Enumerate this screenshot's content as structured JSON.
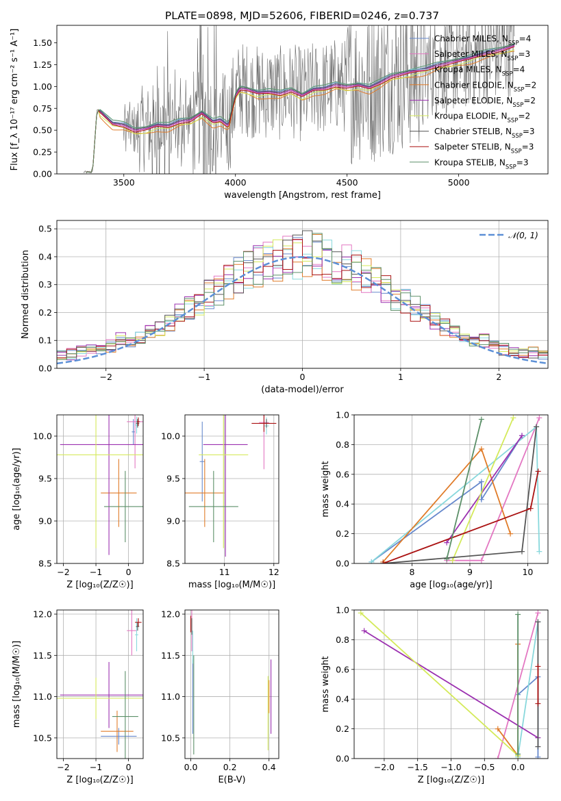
{
  "figure": {
    "title": "PLATE=0898, MJD=52606, FIBERID=0246, z=0.737"
  },
  "models": [
    {
      "name": "Chabrier MILES",
      "nssp": "4",
      "color": "#6688cc"
    },
    {
      "name": "Salpeter MILES",
      "nssp": "3",
      "color": "#e377c2"
    },
    {
      "name": "Kroupa MILES",
      "nssp": "4",
      "color": "#88d8dc"
    },
    {
      "name": "Chabrier ELODIE",
      "nssp": "2",
      "color": "#e07b28"
    },
    {
      "name": "Salpeter ELODIE",
      "nssp": "2",
      "color": "#9b30b0"
    },
    {
      "name": "Kroupa ELODIE",
      "nssp": "2",
      "color": "#d4ea5a"
    },
    {
      "name": "Chabrier STELIB",
      "nssp": "3",
      "color": "#555555"
    },
    {
      "name": "Salpeter STELIB",
      "nssp": "3",
      "color": "#aa1111"
    },
    {
      "name": "Kroupa STELIB",
      "nssp": "3",
      "color": "#5b8f68"
    }
  ],
  "chart_data": [
    {
      "id": "spectrum",
      "type": "line",
      "xlabel": "wavelength [Angstrom, rest frame]",
      "ylabel": "Flux [f_λ 10⁻¹⁷ erg cm⁻² s⁻¹ A⁻¹]",
      "xlim": [
        3200,
        5400
      ],
      "ylim": [
        0,
        1.7
      ],
      "xticks": [
        3500,
        4000,
        4500,
        5000
      ],
      "yticks": [
        0.0,
        0.25,
        0.5,
        0.75,
        1.0,
        1.25,
        1.5
      ],
      "legend": "upper right",
      "grid": false,
      "data_color": "#666666",
      "model_continuum": {
        "x": [
          3300,
          3360,
          3380,
          3400,
          3450,
          3500,
          3550,
          3600,
          3650,
          3700,
          3750,
          3800,
          3850,
          3900,
          3933,
          3968,
          4000,
          4020,
          4050,
          4100,
          4150,
          4200,
          4250,
          4300,
          4350,
          4400,
          4450,
          4500,
          4550,
          4600,
          4650,
          4700,
          4750,
          4800,
          4850,
          4900,
          4950,
          5000,
          5050,
          5100,
          5150,
          5200,
          5250
        ],
        "y": [
          0.02,
          0.02,
          0.74,
          0.7,
          0.58,
          0.56,
          0.5,
          0.52,
          0.56,
          0.55,
          0.6,
          0.62,
          0.7,
          0.6,
          0.62,
          0.55,
          0.9,
          0.98,
          0.97,
          0.93,
          0.94,
          0.92,
          0.96,
          0.9,
          0.97,
          0.98,
          1.02,
          1.0,
          1.02,
          0.99,
          1.05,
          1.12,
          1.15,
          1.18,
          1.2,
          1.24,
          1.27,
          1.3,
          1.33,
          1.37,
          1.4,
          1.43,
          1.47
        ]
      },
      "model_offsets": [
        0.02,
        -0.01,
        0.03,
        -0.06,
        0.0,
        -0.04,
        0.01,
        -0.02,
        0.03
      ]
    },
    {
      "id": "residual_hist",
      "type": "line",
      "xlabel": "(data-model)/error",
      "ylabel": "Normed distribution",
      "xlim": [
        -2.5,
        2.5
      ],
      "ylim": [
        0,
        0.53
      ],
      "xticks": [
        -2,
        -1,
        0,
        1,
        2
      ],
      "yticks": [
        0.0,
        0.1,
        0.2,
        0.3,
        0.4,
        0.5
      ],
      "grid": true,
      "legend": "upper right",
      "gauss_label": "𝒩(0, 1)",
      "gauss_color": "#5b8fd6",
      "bin_width": 0.1
    },
    {
      "id": "age_vs_Z",
      "type": "scatter",
      "xlabel": "Z [log₁₀(Z/Z☉)]",
      "ylabel": "age  [log₁₀(age/yr)]",
      "xlim": [
        -2.2,
        0.45
      ],
      "ylim": [
        8.5,
        10.25
      ],
      "xticks": [
        -2,
        -1,
        0
      ],
      "yticks": [
        8.5,
        9.0,
        9.5,
        10.0
      ],
      "grid": true,
      "points": [
        {
          "model": 0,
          "x": 0.15,
          "y": 10.05,
          "xe": 0.05,
          "ye": 0.15
        },
        {
          "model": 1,
          "x": 0.2,
          "y": 10.17,
          "xe": 0.25,
          "ye": 0.55
        },
        {
          "model": 2,
          "x": 0.25,
          "y": 10.13,
          "xe": 0.05,
          "ye": 0.1
        },
        {
          "model": 3,
          "x": -0.3,
          "y": 9.33,
          "xe": 0.55,
          "ye": 0.4
        },
        {
          "model": 4,
          "x": -0.6,
          "y": 9.9,
          "xe": 1.5,
          "ye": 1.3
        },
        {
          "model": 5,
          "x": -1.0,
          "y": 9.78,
          "xe": 1.8,
          "ye": 1.1
        },
        {
          "model": 6,
          "x": 0.28,
          "y": 10.15,
          "xe": 0.05,
          "ye": 0.05
        },
        {
          "model": 7,
          "x": 0.3,
          "y": 10.17,
          "xe": 0.05,
          "ye": 0.05
        },
        {
          "model": 8,
          "x": -0.1,
          "y": 9.17,
          "xe": 0.65,
          "ye": 0.42
        }
      ]
    },
    {
      "id": "age_vs_mass",
      "type": "scatter",
      "xlabel": "mass [log₁₀(M/M☉)]",
      "ylabel": "",
      "xlim": [
        10.2,
        12.1
      ],
      "ylim": [
        8.5,
        10.25
      ],
      "xticks": [
        10,
        11,
        12
      ],
      "yticks": [
        8.5,
        9.0,
        9.5,
        10.0
      ],
      "grid": true,
      "points": [
        {
          "model": 0,
          "x": 10.55,
          "y": 9.7,
          "xe": 0.05,
          "ye": 0.47
        },
        {
          "model": 1,
          "x": 11.8,
          "y": 10.16,
          "xe": 0.1,
          "ye": 0.55
        },
        {
          "model": 2,
          "x": 11.85,
          "y": 10.12,
          "xe": 0.05,
          "ye": 0.1
        },
        {
          "model": 3,
          "x": 10.6,
          "y": 9.33,
          "xe": 0.4,
          "ye": 0.4
        },
        {
          "model": 4,
          "x": 11.02,
          "y": 9.9,
          "xe": 0.45,
          "ye": 1.32
        },
        {
          "model": 5,
          "x": 10.98,
          "y": 9.78,
          "xe": 0.5,
          "ye": 1.1
        },
        {
          "model": 6,
          "x": 11.85,
          "y": 10.15,
          "xe": 0.05,
          "ye": 0.05
        },
        {
          "model": 7,
          "x": 11.8,
          "y": 10.15,
          "xe": 0.25,
          "ye": 0.1
        },
        {
          "model": 8,
          "x": 10.78,
          "y": 9.17,
          "xe": 0.5,
          "ye": 0.42
        }
      ]
    },
    {
      "id": "weight_vs_age",
      "type": "line",
      "xlabel": "age  [log₁₀(age/yr)]",
      "ylabel": "mass weight",
      "xlim": [
        7.0,
        10.35
      ],
      "ylim": [
        0,
        1.0
      ],
      "xticks": [
        8,
        9,
        10
      ],
      "yticks": [
        0.0,
        0.2,
        0.4,
        0.6,
        0.8,
        1.0
      ],
      "grid": true,
      "series": [
        {
          "model": 0,
          "x": [
            7.3,
            9.2,
            9.2,
            9.9
          ],
          "y": [
            0.01,
            0.55,
            0.43,
            0.86
          ]
        },
        {
          "model": 1,
          "x": [
            8.6,
            9.2,
            10.2
          ],
          "y": [
            0.02,
            0.02,
            0.98
          ]
        },
        {
          "model": 2,
          "x": [
            7.3,
            10.15,
            10.2
          ],
          "y": [
            0.01,
            0.92,
            0.08
          ]
        },
        {
          "model": 3,
          "x": [
            7.5,
            9.2,
            9.7
          ],
          "y": [
            0.01,
            0.77,
            0.2
          ]
        },
        {
          "model": 4,
          "x": [
            8.6,
            9.9
          ],
          "y": [
            0.14,
            0.86
          ]
        },
        {
          "model": 5,
          "x": [
            8.7,
            9.75
          ],
          "y": [
            0.02,
            0.98
          ]
        },
        {
          "model": 6,
          "x": [
            7.5,
            9.9,
            10.15
          ],
          "y": [
            0.0,
            0.08,
            0.92
          ]
        },
        {
          "model": 7,
          "x": [
            7.5,
            10.05,
            10.18
          ],
          "y": [
            0.0,
            0.37,
            0.62
          ]
        },
        {
          "model": 8,
          "x": [
            8.6,
            9.2
          ],
          "y": [
            0.03,
            0.97
          ]
        }
      ]
    },
    {
      "id": "mass_vs_Z",
      "type": "scatter",
      "xlabel": "Z [log₁₀(Z/Z☉)]",
      "ylabel": "mass [log₁₀(M/M☉)]",
      "xlim": [
        -2.2,
        0.45
      ],
      "ylim": [
        10.25,
        12.05
      ],
      "xticks": [
        -2,
        -1,
        0
      ],
      "yticks": [
        10.5,
        11.0,
        11.5,
        12.0
      ],
      "grid": true,
      "points": [
        {
          "model": 0,
          "x": -0.3,
          "y": 10.52,
          "xe": 0.55,
          "ye": 0.1
        },
        {
          "model": 1,
          "x": 0.1,
          "y": 11.8,
          "xe": 0.15,
          "ye": 0.3
        },
        {
          "model": 2,
          "x": 0.25,
          "y": 11.75,
          "xe": 0.05,
          "ye": 0.2
        },
        {
          "model": 3,
          "x": -0.35,
          "y": 10.58,
          "xe": 0.5,
          "ye": 0.25
        },
        {
          "model": 4,
          "x": -0.6,
          "y": 11.02,
          "xe": 1.5,
          "ye": 0.4
        },
        {
          "model": 5,
          "x": -1.0,
          "y": 10.98,
          "xe": 1.8,
          "ye": 0.25
        },
        {
          "model": 6,
          "x": 0.28,
          "y": 11.85,
          "xe": 0.05,
          "ye": 0.05
        },
        {
          "model": 7,
          "x": 0.3,
          "y": 11.9,
          "xe": 0.1,
          "ye": 0.05
        },
        {
          "model": 8,
          "x": -0.1,
          "y": 10.76,
          "xe": 0.4,
          "ye": 0.55
        }
      ]
    },
    {
      "id": "mass_vs_ebv",
      "type": "scatter",
      "xlabel": "E(B-V)",
      "ylabel": "",
      "xlim": [
        -0.03,
        0.45
      ],
      "ylim": [
        10.25,
        12.05
      ],
      "xticks": [
        0.0,
        0.2,
        0.4
      ],
      "yticks": [
        10.5,
        11.0,
        11.5,
        12.0
      ],
      "grid": true,
      "points": [
        {
          "model": 0,
          "x": 0.01,
          "y": 11.0,
          "xe": 0,
          "ye": 0.45
        },
        {
          "model": 1,
          "x": 0.005,
          "y": 11.8,
          "xe": 0,
          "ye": 0.25
        },
        {
          "model": 2,
          "x": 0.01,
          "y": 11.6,
          "xe": 0,
          "ye": 0.2
        },
        {
          "model": 3,
          "x": 0.4,
          "y": 11.0,
          "xe": 0,
          "ye": 0.2
        },
        {
          "model": 4,
          "x": 0.41,
          "y": 11.0,
          "xe": 0,
          "ye": 0.45
        },
        {
          "model": 5,
          "x": 0.395,
          "y": 10.8,
          "xe": 0,
          "ye": 0.45
        },
        {
          "model": 6,
          "x": 0.005,
          "y": 11.85,
          "xe": 0,
          "ye": 0.1
        },
        {
          "model": 7,
          "x": 0.0,
          "y": 11.88,
          "xe": 0,
          "ye": 0.1
        },
        {
          "model": 8,
          "x": 0.015,
          "y": 10.9,
          "xe": 0,
          "ye": 0.6
        }
      ]
    },
    {
      "id": "weight_vs_Z",
      "type": "line",
      "xlabel": "Z [log₁₀(Z/Z☉)]",
      "ylabel": "mass weight",
      "xlim": [
        -2.45,
        0.45
      ],
      "ylim": [
        0,
        1.0
      ],
      "xticks": [
        -2.0,
        -1.5,
        -1.0,
        -0.5,
        0.0
      ],
      "yticks": [
        0.0,
        0.2,
        0.4,
        0.6,
        0.8,
        1.0
      ],
      "grid": true,
      "series": [
        {
          "model": 0,
          "x": [
            0.0,
            0.3,
            0.3
          ],
          "y": [
            0.43,
            0.55,
            0.01
          ]
        },
        {
          "model": 1,
          "x": [
            -0.3,
            0.3
          ],
          "y": [
            0.0,
            0.98
          ]
        },
        {
          "model": 2,
          "x": [
            0.0,
            0.3
          ],
          "y": [
            0.01,
            0.92
          ]
        },
        {
          "model": 3,
          "x": [
            -0.3,
            0.0,
            0.0
          ],
          "y": [
            0.2,
            0.02,
            0.77
          ]
        },
        {
          "model": 4,
          "x": [
            -2.3,
            0.3
          ],
          "y": [
            0.86,
            0.14
          ]
        },
        {
          "model": 5,
          "x": [
            -2.35,
            0.0
          ],
          "y": [
            0.98,
            0.02
          ]
        },
        {
          "model": 6,
          "x": [
            0.3,
            0.3
          ],
          "y": [
            0.08,
            0.92
          ]
        },
        {
          "model": 7,
          "x": [
            0.3,
            0.3
          ],
          "y": [
            0.37,
            0.62
          ]
        },
        {
          "model": 8,
          "x": [
            0.0,
            0.0
          ],
          "y": [
            0.03,
            0.97
          ]
        }
      ]
    }
  ]
}
